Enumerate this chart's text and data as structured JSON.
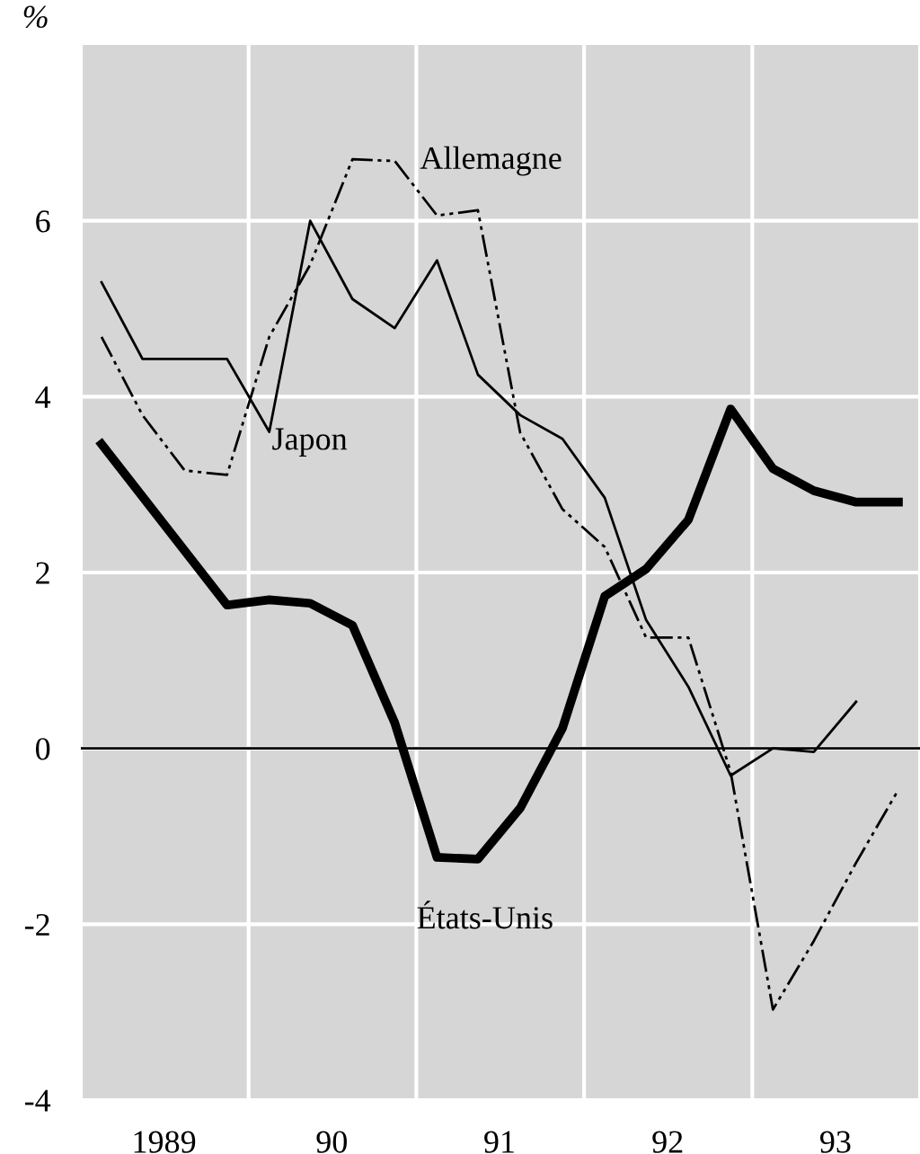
{
  "chart_data": {
    "type": "line",
    "ylabel": "%",
    "xlim": [
      "1989-01-01",
      "1994-01-01"
    ],
    "ylim": [
      -4,
      8
    ],
    "xticks": [
      {
        "value": "1989-01-01",
        "label": null
      },
      {
        "value": "1989-07-01",
        "label": "1989"
      },
      {
        "value": "1990-01-01",
        "label": null
      },
      {
        "value": "1990-07-01",
        "label": "90"
      },
      {
        "value": "1991-01-01",
        "label": null
      },
      {
        "value": "1991-07-01",
        "label": "91"
      },
      {
        "value": "1992-01-01",
        "label": null
      },
      {
        "value": "1992-07-01",
        "label": "92"
      },
      {
        "value": "1993-01-01",
        "label": null
      },
      {
        "value": "1993-07-01",
        "label": "93"
      },
      {
        "value": "1994-01-01",
        "label": null
      }
    ],
    "yticks": [
      -4,
      -2,
      0,
      2,
      4,
      6
    ],
    "grid": true,
    "marker": "none",
    "ref_lines": [
      {
        "axis": "y",
        "value": 0,
        "color": "#000000"
      }
    ],
    "series": [
      {
        "color": "#000000",
        "line_style": "solid",
        "x": [
          "1989-02-15",
          "1989-11-15",
          "1990-02-15",
          "1990-05-15",
          "1990-08-15",
          "1990-11-15",
          "1991-02-15",
          "1991-05-15",
          "1991-08-15",
          "1991-11-15",
          "1992-02-15",
          "1992-05-15",
          "1992-08-15",
          "1992-11-15",
          "1993-02-15",
          "1993-05-15",
          "1993-08-15",
          "1993-11-15"
        ],
        "values": [
          3.46,
          1.63,
          1.69,
          1.65,
          1.4,
          0.29,
          -1.24,
          -1.26,
          -0.68,
          0.23,
          1.73,
          2.04,
          2.6,
          3.86,
          3.18,
          2.93,
          2.8,
          2.8
        ]
      },
      {
        "color": "#000000",
        "line_style": "solid",
        "x": [
          "1989-02-15",
          "1989-05-15",
          "1989-11-15",
          "1990-02-15",
          "1990-05-15",
          "1990-08-15",
          "1990-11-15",
          "1991-02-15",
          "1991-05-15",
          "1991-08-15",
          "1991-11-15",
          "1992-02-15",
          "1992-05-15",
          "1992-08-15",
          "1992-11-15",
          "1993-02-15",
          "1993-05-15",
          "1993-08-15"
        ],
        "values": [
          5.3,
          4.43,
          4.43,
          3.6,
          6.0,
          5.11,
          4.78,
          5.55,
          4.25,
          3.79,
          3.52,
          2.85,
          1.46,
          0.7,
          -0.31,
          0.0,
          -0.04,
          0.53
        ]
      },
      {
        "color": "#000000",
        "line_style": "dashed",
        "x": [
          "1989-02-15",
          "1989-05-15",
          "1989-08-15",
          "1989-11-15",
          "1990-02-15",
          "1990-05-15",
          "1990-08-15",
          "1990-11-15",
          "1991-02-15",
          "1991-05-15",
          "1991-08-15",
          "1991-11-15",
          "1992-02-15",
          "1992-05-15",
          "1992-08-15",
          "1992-11-15",
          "1993-02-15",
          "1993-05-15",
          "1993-08-15",
          "1993-11-15"
        ],
        "values": [
          4.68,
          3.79,
          3.16,
          3.11,
          4.68,
          5.5,
          6.7,
          6.68,
          6.06,
          6.12,
          3.59,
          2.72,
          2.29,
          1.26,
          1.26,
          -0.27,
          -2.97,
          -2.19,
          -1.3,
          -0.47
        ]
      }
    ],
    "annotations": [
      "Allemagne",
      {
        "text": "Japon",
        "x": "1990-02-15",
        "y": 3.6
      },
      "États-Unis"
    ]
  }
}
